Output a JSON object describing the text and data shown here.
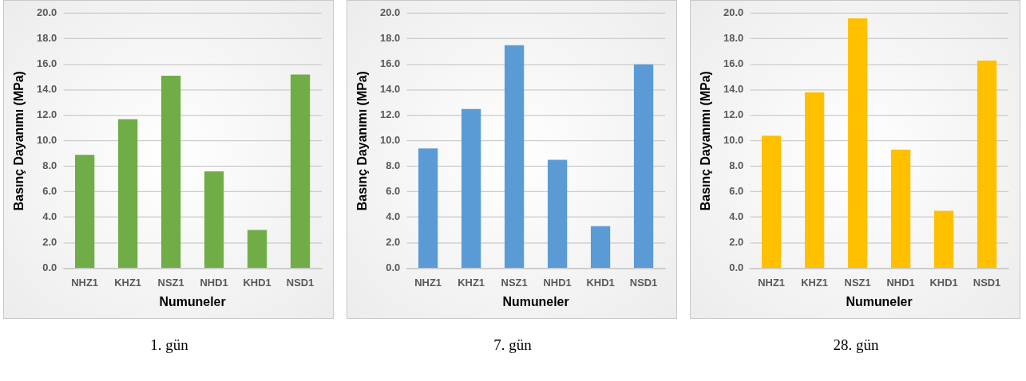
{
  "chart_data": [
    {
      "type": "bar",
      "xlabel": "Numuneler",
      "ylabel": "Basınç Dayanımı (MPa)",
      "categories": [
        "NHZ1",
        "KHZ1",
        "NSZ1",
        "NHD1",
        "KHD1",
        "NSD1"
      ],
      "values": [
        8.9,
        11.7,
        15.1,
        7.6,
        3.0,
        15.2
      ],
      "color": "#70ad47",
      "ylim": [
        0,
        20
      ],
      "yticks": [
        {
          "value": 0,
          "label": "0.0"
        },
        {
          "value": 2,
          "label": "2.0"
        },
        {
          "value": 4,
          "label": "4.0"
        },
        {
          "value": 6,
          "label": "6.0"
        },
        {
          "value": 8,
          "label": "8.0"
        },
        {
          "value": 10,
          "label": "10.0"
        },
        {
          "value": 12,
          "label": "12.0"
        },
        {
          "value": 14,
          "label": "14.0"
        },
        {
          "value": 16,
          "label": "16.0"
        },
        {
          "value": 18,
          "label": "18.0"
        },
        {
          "value": 20,
          "label": "20.0"
        }
      ],
      "grid": "y",
      "annotations": [
        "1. gün"
      ]
    },
    {
      "type": "bar",
      "xlabel": "Numuneler",
      "ylabel": "Basınç Dayanımı (MPa)",
      "categories": [
        "NHZ1",
        "KHZ1",
        "NSZ1",
        "NHD1",
        "KHD1",
        "NSD1"
      ],
      "values": [
        9.4,
        12.5,
        17.5,
        8.5,
        3.3,
        16.0
      ],
      "color": "#5b9bd5",
      "ylim": [
        0,
        20
      ],
      "yticks": [
        {
          "value": 0,
          "label": "0.0"
        },
        {
          "value": 2,
          "label": "2.0"
        },
        {
          "value": 4,
          "label": "4.0"
        },
        {
          "value": 6,
          "label": "6.0"
        },
        {
          "value": 8,
          "label": "8.0"
        },
        {
          "value": 10,
          "label": "10.0"
        },
        {
          "value": 12,
          "label": "12.0"
        },
        {
          "value": 14,
          "label": "14.0"
        },
        {
          "value": 16,
          "label": "16.0"
        },
        {
          "value": 18,
          "label": "18.0"
        },
        {
          "value": 20,
          "label": "20.0"
        }
      ],
      "grid": "y",
      "annotations": [
        "7. gün"
      ]
    },
    {
      "type": "bar",
      "xlabel": "Numuneler",
      "ylabel": "Basınç Dayanımı (MPa)",
      "categories": [
        "NHZ1",
        "KHZ1",
        "NSZ1",
        "NHD1",
        "KHD1",
        "NSD1"
      ],
      "values": [
        10.4,
        13.8,
        19.6,
        9.3,
        4.5,
        16.3
      ],
      "color": "#ffc000",
      "ylim": [
        0,
        20
      ],
      "yticks": [
        {
          "value": 0,
          "label": "0.0"
        },
        {
          "value": 2,
          "label": "2.0"
        },
        {
          "value": 4,
          "label": "4.0"
        },
        {
          "value": 6,
          "label": "6.0"
        },
        {
          "value": 8,
          "label": "8.0"
        },
        {
          "value": 10,
          "label": "10.0"
        },
        {
          "value": 12,
          "label": "12.0"
        },
        {
          "value": 14,
          "label": "14.0"
        },
        {
          "value": 16,
          "label": "16.0"
        },
        {
          "value": 18,
          "label": "18.0"
        },
        {
          "value": 20,
          "label": "20.0"
        }
      ],
      "grid": "y",
      "annotations": [
        "28. gün"
      ]
    }
  ]
}
